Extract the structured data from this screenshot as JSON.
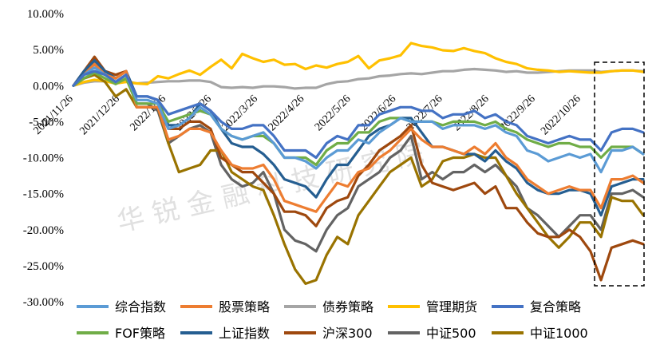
{
  "chart_data": {
    "type": "line",
    "title": "",
    "xlabel": "",
    "ylabel": "",
    "ylim": [
      -30,
      10
    ],
    "y_ticks": [
      "10.00%",
      "5.00%",
      "0.00%",
      "-5.00%",
      "-10.00%",
      "-15.00%",
      "-20.00%",
      "-25.00%",
      "-30.00%"
    ],
    "x_ticks": [
      "2021/11/26",
      "2021/12/26",
      "2022/1/26",
      "2022/2/26",
      "2022/3/26",
      "2022/4/26",
      "2022/5/26",
      "2022/6/26",
      "2022/7/26",
      "2022/8/26",
      "2022/9/26",
      "2022/10/26"
    ],
    "x_tick_positions": [
      0,
      4.4,
      8.8,
      13.1,
      17.5,
      21.9,
      26.3,
      30.6,
      35.0,
      39.4,
      43.8,
      48.1
    ],
    "watermark": "华 锐 金 融 科 技 研 究 院",
    "legend_position": "bottom",
    "annotation": "dashed box highlighting the most recent weeks",
    "series": [
      {
        "name": "综合指数",
        "color": "#5b9bd5",
        "values": [
          0,
          1.5,
          2.5,
          1.5,
          0.5,
          1.5,
          -2,
          -2,
          -2.5,
          -6,
          -5.5,
          -4.5,
          -3,
          -4,
          -6,
          -7,
          -7.5,
          -7,
          -6.5,
          -8,
          -10,
          -10,
          -10.5,
          -11.5,
          -10,
          -9,
          -9,
          -7.5,
          -8,
          -6.5,
          -5.5,
          -4.5,
          -5,
          -5,
          -5,
          -6,
          -5.5,
          -5.5,
          -5.5,
          -6,
          -5.5,
          -6.5,
          -7,
          -9,
          -9.5,
          -10.5,
          -10,
          -9.5,
          -10,
          -9.5,
          -12,
          -9,
          -9,
          -8.5,
          -9.5
        ]
      },
      {
        "name": "股票策略",
        "color": "#ed7d31",
        "values": [
          0,
          1.5,
          3,
          1.5,
          1,
          2,
          -3,
          -3,
          -3,
          -7.5,
          -7,
          -6,
          -6,
          -6.5,
          -9,
          -11,
          -11.5,
          -11.5,
          -11,
          -13,
          -16,
          -16.5,
          -17,
          -17.5,
          -15.5,
          -13.5,
          -14,
          -12,
          -11.5,
          -10,
          -9,
          -7.5,
          -6,
          -7.5,
          -8.5,
          -8.5,
          -9,
          -9.5,
          -8.5,
          -9.5,
          -8,
          -10,
          -11,
          -13,
          -14,
          -15,
          -14.5,
          -14,
          -14.5,
          -14.5,
          -17,
          -13,
          -13,
          -12.5,
          -13.5
        ]
      },
      {
        "name": "债券策略",
        "color": "#a5a5a5",
        "values": [
          0,
          0.4,
          0.6,
          0.6,
          0.5,
          0.6,
          0.3,
          0.4,
          0.5,
          0.6,
          0.6,
          0.7,
          0.7,
          0.5,
          -0.2,
          -0.3,
          -0.2,
          -0.3,
          -0.1,
          -0.1,
          -0.2,
          -0.4,
          -0.3,
          -0.3,
          0.2,
          0.5,
          0.6,
          0.9,
          1.0,
          1.3,
          1.4,
          1.6,
          1.7,
          1.6,
          1.8,
          2.0,
          2.0,
          2.2,
          2.3,
          2.2,
          2.1,
          1.9,
          2.0,
          1.8,
          1.8,
          1.9,
          2.0,
          2.1,
          2.1,
          2.1,
          1.9,
          2.0,
          2.1,
          2.1,
          2.0
        ]
      },
      {
        "name": "管理期货",
        "color": "#ffc000",
        "values": [
          0,
          0.5,
          0.8,
          0.6,
          0.3,
          0.5,
          0.3,
          0.2,
          1.3,
          1.0,
          1.6,
          2.1,
          1.5,
          2.6,
          3.6,
          2.4,
          4.4,
          3.8,
          3.3,
          3.6,
          2.9,
          3.0,
          2.3,
          2.8,
          2.5,
          3.0,
          3.3,
          4.1,
          2.4,
          3.5,
          3.8,
          4.2,
          5.9,
          5.5,
          5.3,
          4.9,
          4.8,
          5.2,
          4.8,
          4.5,
          3.8,
          3.3,
          3.0,
          2.4,
          2.2,
          2.1,
          1.9,
          2.0,
          1.9,
          1.8,
          1.8,
          2.0,
          2.1,
          2.1,
          1.9
        ]
      },
      {
        "name": "复合策略",
        "color": "#4472c4",
        "values": [
          0,
          1.5,
          2,
          1.5,
          0.5,
          1.5,
          -1.5,
          -1.5,
          -2,
          -4,
          -3.5,
          -3,
          -2.5,
          -3.5,
          -5,
          -6,
          -6,
          -5.5,
          -5.5,
          -7,
          -9,
          -9,
          -9,
          -10,
          -8,
          -7,
          -7.5,
          -5.5,
          -5.5,
          -4,
          -3.5,
          -3,
          -3,
          -3.5,
          -3.5,
          -4.5,
          -4,
          -4,
          -3.5,
          -4.5,
          -4,
          -5,
          -5.5,
          -7,
          -7.5,
          -8,
          -7.5,
          -7,
          -7.5,
          -7.5,
          -9,
          -6.5,
          -6,
          -6,
          -6.5
        ]
      },
      {
        "name": "FOF策略",
        "color": "#70ad47",
        "values": [
          0,
          1,
          1.8,
          1,
          0.2,
          1,
          -2.5,
          -2.5,
          -2.5,
          -5,
          -4.5,
          -4,
          -3.5,
          -4,
          -6,
          -7,
          -7.5,
          -7,
          -7,
          -8,
          -10,
          -10,
          -10,
          -11,
          -9,
          -8,
          -8,
          -6.5,
          -6.5,
          -5,
          -4.5,
          -4.5,
          -5,
          -5,
          -5,
          -5.5,
          -5,
          -5,
          -5,
          -5.5,
          -5,
          -6,
          -6.5,
          -7.5,
          -8,
          -8.5,
          -8,
          -8,
          -8.5,
          -8.5,
          -10,
          -8.5,
          -8.5,
          -8.5,
          -9.5
        ]
      },
      {
        "name": "上证指数",
        "color": "#255e91",
        "values": [
          0,
          2,
          3.5,
          2,
          1,
          2,
          -1.5,
          -1.5,
          -2,
          -5.5,
          -5.5,
          -4.5,
          -2.5,
          -3.5,
          -6,
          -8,
          -8.5,
          -8.5,
          -9.5,
          -11,
          -13,
          -13.5,
          -14,
          -15.5,
          -13,
          -11,
          -11,
          -9,
          -7,
          -6,
          -5.5,
          -4.5,
          -4.5,
          -6.5,
          -8.5,
          -8.5,
          -9,
          -9.5,
          -9.5,
          -10.5,
          -9,
          -10.5,
          -11.5,
          -13.5,
          -14.5,
          -15,
          -15,
          -14.5,
          -14.5,
          -15,
          -18,
          -14,
          -13.5,
          -13,
          -13
        ]
      },
      {
        "name": "沪深300",
        "color": "#9e480e",
        "values": [
          0,
          2,
          4,
          2,
          1.5,
          2,
          -3,
          -3,
          -3,
          -6,
          -6,
          -5,
          -5,
          -6,
          -10,
          -11,
          -12,
          -12,
          -13.5,
          -15,
          -17.5,
          -17.5,
          -18,
          -19.5,
          -17,
          -16,
          -15.5,
          -12.5,
          -11,
          -9,
          -8,
          -7,
          -5.5,
          -11,
          -13.5,
          -14,
          -14.5,
          -14,
          -13.5,
          -15,
          -14,
          -17,
          -17,
          -19,
          -20.5,
          -21,
          -21,
          -20,
          -21,
          -23,
          -27,
          -22.5,
          -22,
          -21.5,
          -22
        ]
      },
      {
        "name": "中证500",
        "color": "#636363",
        "values": [
          0,
          1.5,
          3.5,
          1.5,
          0.5,
          1.5,
          -2.5,
          -2.5,
          -3.5,
          -8,
          -7,
          -6,
          -5.5,
          -6.5,
          -11,
          -13,
          -14,
          -13.5,
          -12,
          -15,
          -20,
          -21.5,
          -22,
          -23,
          -20,
          -18,
          -17,
          -14,
          -13,
          -12,
          -10,
          -9,
          -7,
          -13,
          -12,
          -13,
          -12,
          -12,
          -11,
          -12,
          -11,
          -12.5,
          -14,
          -17,
          -18,
          -19.5,
          -21,
          -19.5,
          -18,
          -18,
          -20,
          -15,
          -15,
          -14.5,
          -15.5
        ]
      },
      {
        "name": "中证1000",
        "color": "#997300",
        "values": [
          0,
          1,
          1.5,
          0.5,
          -1.5,
          -0.5,
          -3,
          -3,
          -3,
          -8,
          -12,
          -11.5,
          -11,
          -9,
          -9,
          -12,
          -13,
          -14,
          -14.5,
          -18,
          -22,
          -25.5,
          -27.5,
          -27,
          -23.5,
          -21,
          -22,
          -18,
          -16,
          -14,
          -12,
          -11,
          -10,
          -14,
          -13,
          -10.5,
          -10,
          -10,
          -9.5,
          -10,
          -10,
          -12.5,
          -15,
          -17,
          -19,
          -21,
          -22.5,
          -21,
          -19,
          -19,
          -21,
          -15.5,
          -16,
          -16,
          -18
        ]
      }
    ]
  }
}
